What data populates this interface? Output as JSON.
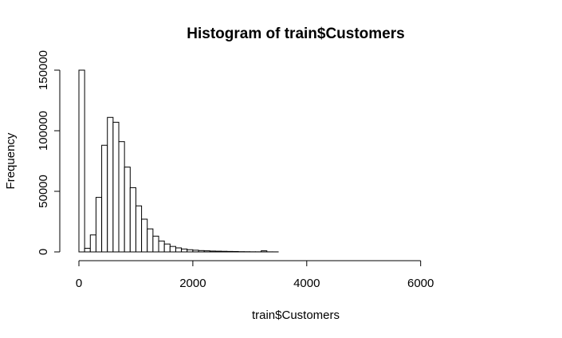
{
  "chart_data": {
    "type": "bar",
    "title": "Histogram of train$Customers",
    "xlabel": "train$Customers",
    "ylabel": "Frequency",
    "xlim": [
      0,
      7600
    ],
    "ylim": [
      0,
      150000
    ],
    "bin_width": 100,
    "x_ticks": [
      0,
      2000,
      4000,
      6000
    ],
    "x_tick_labels": [
      "0",
      "2000",
      "4000",
      "6000"
    ],
    "y_ticks": [
      0,
      50000,
      100000,
      150000
    ],
    "y_tick_labels": [
      "0",
      "50000",
      "100000",
      "150000"
    ],
    "bins": [
      {
        "start": 0,
        "end": 100,
        "count": 150000
      },
      {
        "start": 100,
        "end": 200,
        "count": 3000
      },
      {
        "start": 200,
        "end": 300,
        "count": 14000
      },
      {
        "start": 300,
        "end": 400,
        "count": 45000
      },
      {
        "start": 400,
        "end": 500,
        "count": 88000
      },
      {
        "start": 500,
        "end": 600,
        "count": 111000
      },
      {
        "start": 600,
        "end": 700,
        "count": 107000
      },
      {
        "start": 700,
        "end": 800,
        "count": 91000
      },
      {
        "start": 800,
        "end": 900,
        "count": 70000
      },
      {
        "start": 900,
        "end": 1000,
        "count": 53000
      },
      {
        "start": 1000,
        "end": 1100,
        "count": 38000
      },
      {
        "start": 1100,
        "end": 1200,
        "count": 27000
      },
      {
        "start": 1200,
        "end": 1300,
        "count": 19000
      },
      {
        "start": 1300,
        "end": 1400,
        "count": 13000
      },
      {
        "start": 1400,
        "end": 1500,
        "count": 9000
      },
      {
        "start": 1500,
        "end": 1600,
        "count": 6500
      },
      {
        "start": 1600,
        "end": 1700,
        "count": 4500
      },
      {
        "start": 1700,
        "end": 1800,
        "count": 3300
      },
      {
        "start": 1800,
        "end": 1900,
        "count": 2400
      },
      {
        "start": 1900,
        "end": 2000,
        "count": 1800
      },
      {
        "start": 2000,
        "end": 2100,
        "count": 1400
      },
      {
        "start": 2100,
        "end": 2200,
        "count": 1100
      },
      {
        "start": 2200,
        "end": 2300,
        "count": 900
      },
      {
        "start": 2300,
        "end": 2400,
        "count": 700
      },
      {
        "start": 2400,
        "end": 2500,
        "count": 600
      },
      {
        "start": 2500,
        "end": 2600,
        "count": 500
      },
      {
        "start": 2600,
        "end": 2700,
        "count": 400
      },
      {
        "start": 2700,
        "end": 2800,
        "count": 350
      },
      {
        "start": 2800,
        "end": 2900,
        "count": 200
      },
      {
        "start": 2900,
        "end": 3000,
        "count": 150
      },
      {
        "start": 3000,
        "end": 3100,
        "count": 100
      },
      {
        "start": 3100,
        "end": 3200,
        "count": 80
      },
      {
        "start": 3200,
        "end": 3300,
        "count": 900
      },
      {
        "start": 3300,
        "end": 3400,
        "count": 60
      },
      {
        "start": 3400,
        "end": 3500,
        "count": 40
      }
    ],
    "grid": false,
    "legend": "none"
  }
}
